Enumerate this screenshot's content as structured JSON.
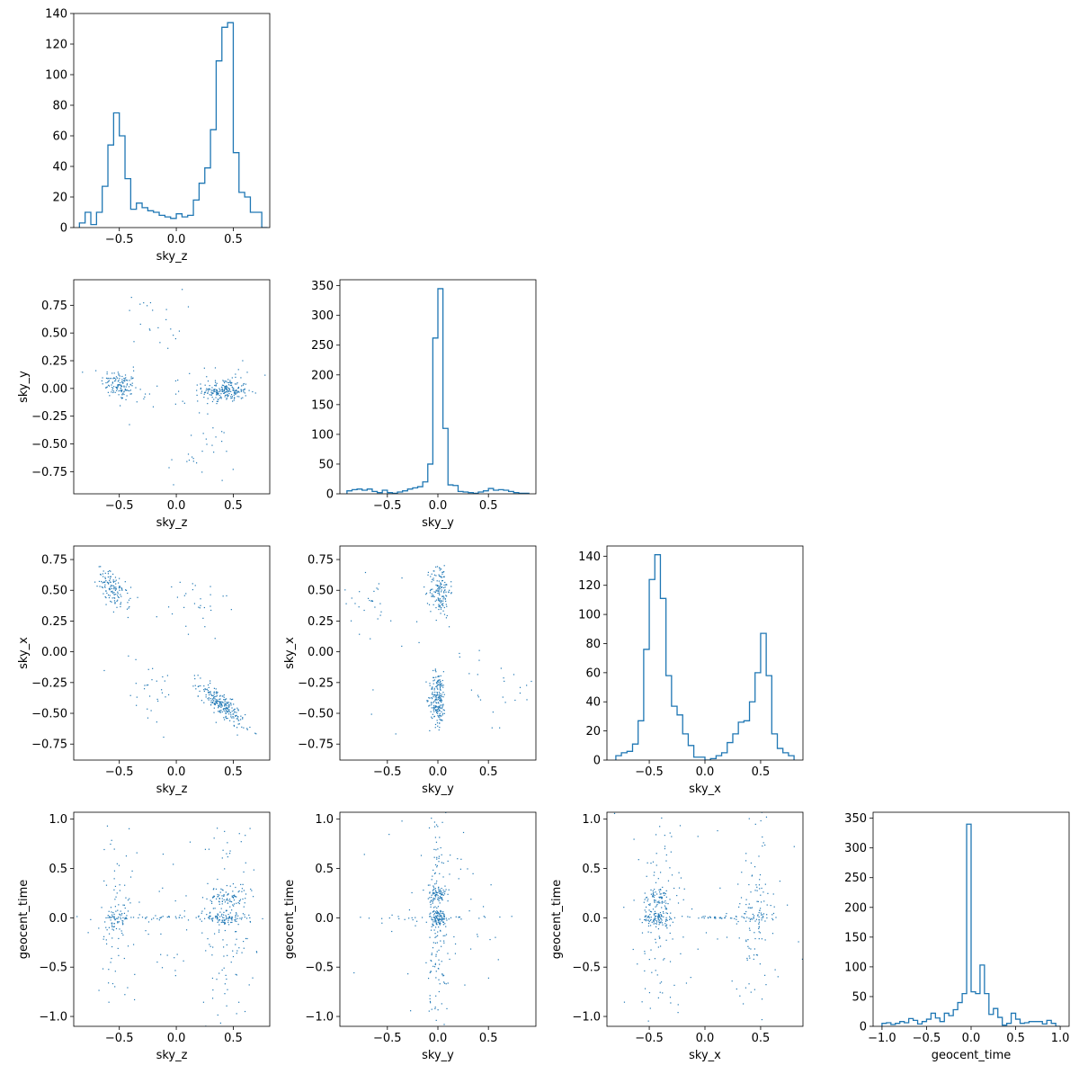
{
  "figure": {
    "variables": [
      "sky_z",
      "sky_y",
      "sky_x",
      "geocent_time"
    ],
    "color": "#1f77b4"
  },
  "chart_data": [
    {
      "type": "histogram",
      "row": 0,
      "col": 0,
      "xlabel": "sky_z",
      "ylabel": "",
      "xlim": [
        -0.9,
        0.82
      ],
      "ylim": [
        0,
        140
      ],
      "xticks": [
        -0.5,
        0.0,
        0.5
      ],
      "yticks": [
        0,
        20,
        40,
        60,
        80,
        100,
        120,
        140
      ],
      "bin_edges": [
        -0.85,
        -0.8,
        -0.75,
        -0.7,
        -0.65,
        -0.6,
        -0.55,
        -0.5,
        -0.45,
        -0.4,
        -0.35,
        -0.3,
        -0.25,
        -0.2,
        -0.15,
        -0.1,
        -0.05,
        0.0,
        0.05,
        0.1,
        0.15,
        0.2,
        0.25,
        0.3,
        0.35,
        0.4,
        0.45,
        0.5,
        0.55,
        0.6,
        0.65,
        0.7,
        0.75,
        0.8
      ],
      "counts": [
        3,
        10,
        2,
        10,
        27,
        54,
        75,
        60,
        32,
        12,
        16,
        13,
        11,
        10,
        8,
        7,
        6,
        9,
        7,
        8,
        18,
        29,
        39,
        64,
        109,
        131,
        134,
        49,
        23,
        20,
        10,
        10,
        0
      ]
    },
    {
      "type": "scatter",
      "row": 1,
      "col": 0,
      "xlabel": "sky_z",
      "ylabel": "sky_y",
      "xlim": [
        -0.9,
        0.82
      ],
      "ylim": [
        -0.95,
        0.98
      ],
      "xticks": [
        -0.5,
        0.0,
        0.5
      ],
      "yticks": [
        -0.75,
        -0.5,
        -0.25,
        0.0,
        0.25,
        0.5,
        0.75
      ],
      "clusters": [
        {
          "n": 130,
          "cx": -0.5,
          "cy": 0.03,
          "sx": 0.08,
          "sy": 0.07,
          "rho": -0.3
        },
        {
          "n": 210,
          "cx": 0.43,
          "cy": -0.02,
          "sx": 0.1,
          "sy": 0.05,
          "rho": 0.0
        },
        {
          "n": 22,
          "cx": -0.2,
          "cy": 0.62,
          "sx": 0.13,
          "sy": 0.14,
          "rho": 0.0
        },
        {
          "n": 28,
          "cx": 0.22,
          "cy": -0.6,
          "sx": 0.15,
          "sy": 0.15,
          "rho": 0.0
        },
        {
          "n": 40,
          "cx": 0.0,
          "cy": 0.0,
          "sx": 0.5,
          "sy": 0.14,
          "rho": 0.0
        }
      ]
    },
    {
      "type": "histogram",
      "row": 1,
      "col": 1,
      "xlabel": "sky_y",
      "ylabel": "",
      "xlim": [
        -0.97,
        0.97
      ],
      "ylim": [
        0,
        360
      ],
      "xticks": [
        -0.5,
        0.0,
        0.5
      ],
      "yticks": [
        0,
        50,
        100,
        150,
        200,
        250,
        300,
        350
      ],
      "bin_edges": [
        -0.9,
        -0.85,
        -0.8,
        -0.75,
        -0.7,
        -0.65,
        -0.6,
        -0.55,
        -0.5,
        -0.45,
        -0.4,
        -0.35,
        -0.3,
        -0.25,
        -0.2,
        -0.15,
        -0.1,
        -0.05,
        0.0,
        0.05,
        0.1,
        0.15,
        0.2,
        0.25,
        0.3,
        0.35,
        0.4,
        0.45,
        0.5,
        0.55,
        0.6,
        0.65,
        0.7,
        0.75,
        0.8,
        0.85,
        0.9
      ],
      "counts": [
        5,
        7,
        8,
        6,
        8,
        4,
        2,
        6,
        2,
        1,
        3,
        5,
        8,
        10,
        12,
        20,
        50,
        262,
        345,
        110,
        15,
        14,
        4,
        3,
        2,
        1,
        3,
        5,
        9,
        6,
        7,
        6,
        4,
        2,
        1,
        1
      ]
    },
    {
      "type": "scatter",
      "row": 2,
      "col": 0,
      "xlabel": "sky_z",
      "ylabel": "sky_x",
      "xlim": [
        -0.9,
        0.82
      ],
      "ylim": [
        -0.88,
        0.86
      ],
      "xticks": [
        -0.5,
        0.0,
        0.5
      ],
      "yticks": [
        -0.75,
        -0.5,
        -0.25,
        0.0,
        0.25,
        0.5,
        0.75
      ],
      "clusters": [
        {
          "n": 130,
          "cx": -0.55,
          "cy": 0.5,
          "sx": 0.07,
          "sy": 0.08,
          "rho": -0.6
        },
        {
          "n": 230,
          "cx": 0.4,
          "cy": -0.43,
          "sx": 0.1,
          "sy": 0.09,
          "rho": -0.85
        },
        {
          "n": 30,
          "cx": 0.15,
          "cy": 0.35,
          "sx": 0.15,
          "sy": 0.15,
          "rho": 0.0
        },
        {
          "n": 30,
          "cx": -0.25,
          "cy": -0.3,
          "sx": 0.15,
          "sy": 0.15,
          "rho": 0.0
        }
      ]
    },
    {
      "type": "scatter",
      "row": 2,
      "col": 1,
      "xlabel": "sky_y",
      "ylabel": "sky_x",
      "xlim": [
        -0.97,
        0.97
      ],
      "ylim": [
        -0.88,
        0.86
      ],
      "xticks": [
        -0.5,
        0.0,
        0.5
      ],
      "yticks": [
        -0.75,
        -0.5,
        -0.25,
        0.0,
        0.25,
        0.5,
        0.75
      ],
      "clusters": [
        {
          "n": 150,
          "cx": 0.02,
          "cy": 0.5,
          "sx": 0.05,
          "sy": 0.11,
          "rho": 0.0
        },
        {
          "n": 200,
          "cx": 0.0,
          "cy": -0.38,
          "sx": 0.04,
          "sy": 0.11,
          "rho": 0.0
        },
        {
          "n": 25,
          "cx": -0.65,
          "cy": 0.4,
          "sx": 0.15,
          "sy": 0.13,
          "rho": 0.0
        },
        {
          "n": 20,
          "cx": 0.65,
          "cy": -0.35,
          "sx": 0.14,
          "sy": 0.13,
          "rho": 0.0
        },
        {
          "n": 20,
          "cx": 0.0,
          "cy": 0.0,
          "sx": 0.35,
          "sy": 0.4,
          "rho": 0.0
        }
      ]
    },
    {
      "type": "histogram",
      "row": 2,
      "col": 2,
      "xlabel": "sky_x",
      "ylabel": "",
      "xlim": [
        -0.88,
        0.88
      ],
      "ylim": [
        0,
        147
      ],
      "xticks": [
        -0.5,
        0.0,
        0.5
      ],
      "yticks": [
        0,
        20,
        40,
        60,
        80,
        100,
        120,
        140
      ],
      "bin_edges": [
        -0.8,
        -0.75,
        -0.7,
        -0.65,
        -0.6,
        -0.55,
        -0.5,
        -0.45,
        -0.4,
        -0.35,
        -0.3,
        -0.25,
        -0.2,
        -0.15,
        -0.1,
        -0.05,
        0.0,
        0.05,
        0.1,
        0.15,
        0.2,
        0.25,
        0.3,
        0.35,
        0.4,
        0.45,
        0.5,
        0.55,
        0.6,
        0.65,
        0.7,
        0.75,
        0.8
      ],
      "counts": [
        3,
        5,
        6,
        11,
        27,
        76,
        124,
        141,
        111,
        58,
        37,
        31,
        18,
        10,
        2,
        2,
        0,
        1,
        3,
        5,
        12,
        18,
        26,
        27,
        40,
        60,
        87,
        58,
        18,
        8,
        5,
        3
      ]
    },
    {
      "type": "scatter",
      "row": 3,
      "col": 0,
      "xlabel": "sky_z",
      "ylabel": "geocent_time",
      "xlim": [
        -0.9,
        0.82
      ],
      "ylim": [
        -1.1,
        1.07
      ],
      "xticks": [
        -0.5,
        0.0,
        0.5
      ],
      "yticks": [
        -1.0,
        -0.5,
        0.0,
        0.5,
        1.0
      ],
      "clusters": [
        {
          "n": 55,
          "cx": -0.52,
          "cy": 0.0,
          "sx": 0.05,
          "sy": 0.05,
          "rho": 0.0
        },
        {
          "n": 90,
          "cx": 0.42,
          "cy": 0.0,
          "sx": 0.1,
          "sy": 0.03,
          "rho": 0.0
        },
        {
          "n": 70,
          "cx": 0.45,
          "cy": 0.2,
          "sx": 0.09,
          "sy": 0.06,
          "rho": 0.0
        },
        {
          "n": 35,
          "cx": -0.1,
          "cy": 0.0,
          "sx": 0.22,
          "sy": 0.01,
          "rho": 0.0
        },
        {
          "n": 80,
          "cx": -0.5,
          "cy": 0.0,
          "sx": 0.09,
          "sy": 0.5,
          "rho": 0.0
        },
        {
          "n": 120,
          "cx": 0.45,
          "cy": 0.0,
          "sx": 0.12,
          "sy": 0.5,
          "rho": 0.0
        },
        {
          "n": 40,
          "cx": 0.0,
          "cy": 0.0,
          "sx": 0.4,
          "sy": 0.6,
          "rho": 0.0
        }
      ]
    },
    {
      "type": "scatter",
      "row": 3,
      "col": 1,
      "xlabel": "sky_y",
      "ylabel": "geocent_time",
      "xlim": [
        -0.97,
        0.97
      ],
      "ylim": [
        -1.1,
        1.07
      ],
      "xticks": [
        -0.5,
        0.0,
        0.5
      ],
      "yticks": [
        -1.0,
        -0.5,
        0.0,
        0.5,
        1.0
      ],
      "clusters": [
        {
          "n": 90,
          "cx": 0.0,
          "cy": 0.0,
          "sx": 0.04,
          "sy": 0.04,
          "rho": 0.0
        },
        {
          "n": 60,
          "cx": 0.0,
          "cy": 0.22,
          "sx": 0.04,
          "sy": 0.06,
          "rho": 0.0
        },
        {
          "n": 30,
          "cx": 0.0,
          "cy": 0.0,
          "sx": 0.4,
          "sy": 0.01,
          "rho": 0.0
        },
        {
          "n": 150,
          "cx": 0.0,
          "cy": 0.0,
          "sx": 0.05,
          "sy": 0.55,
          "rho": 0.0
        },
        {
          "n": 60,
          "cx": 0.0,
          "cy": 0.0,
          "sx": 0.4,
          "sy": 0.55,
          "rho": 0.0
        }
      ]
    },
    {
      "type": "scatter",
      "row": 3,
      "col": 2,
      "xlabel": "sky_x",
      "ylabel": "geocent_time",
      "xlim": [
        -0.88,
        0.88
      ],
      "ylim": [
        -1.1,
        1.07
      ],
      "xticks": [
        -0.5,
        0.0,
        0.5
      ],
      "yticks": [
        -1.0,
        -0.5,
        0.0,
        0.5,
        1.0
      ],
      "clusters": [
        {
          "n": 90,
          "cx": -0.42,
          "cy": 0.0,
          "sx": 0.07,
          "sy": 0.04,
          "rho": 0.0
        },
        {
          "n": 60,
          "cx": -0.42,
          "cy": 0.2,
          "sx": 0.07,
          "sy": 0.06,
          "rho": 0.0
        },
        {
          "n": 50,
          "cx": 0.45,
          "cy": 0.02,
          "sx": 0.08,
          "sy": 0.05,
          "rho": 0.0
        },
        {
          "n": 35,
          "cx": 0.1,
          "cy": 0.0,
          "sx": 0.2,
          "sy": 0.01,
          "rho": 0.0
        },
        {
          "n": 110,
          "cx": -0.42,
          "cy": 0.0,
          "sx": 0.1,
          "sy": 0.5,
          "rho": 0.0
        },
        {
          "n": 90,
          "cx": 0.45,
          "cy": 0.0,
          "sx": 0.1,
          "sy": 0.5,
          "rho": 0.0
        },
        {
          "n": 30,
          "cx": 0.0,
          "cy": 0.0,
          "sx": 0.4,
          "sy": 0.6,
          "rho": 0.0
        }
      ]
    },
    {
      "type": "histogram",
      "row": 3,
      "col": 3,
      "xlabel": "geocent_time",
      "ylabel": "",
      "xlim": [
        -1.1,
        1.1
      ],
      "ylim": [
        0,
        360
      ],
      "xticks": [
        -1.0,
        -0.5,
        0.0,
        0.5,
        1.0
      ],
      "yticks": [
        0,
        50,
        100,
        150,
        200,
        250,
        300,
        350
      ],
      "bin_edges": [
        -1.0,
        -0.95,
        -0.9,
        -0.85,
        -0.8,
        -0.75,
        -0.7,
        -0.65,
        -0.6,
        -0.55,
        -0.5,
        -0.45,
        -0.4,
        -0.35,
        -0.3,
        -0.25,
        -0.2,
        -0.15,
        -0.1,
        -0.05,
        0.0,
        0.05,
        0.1,
        0.15,
        0.2,
        0.25,
        0.3,
        0.35,
        0.4,
        0.45,
        0.5,
        0.55,
        0.6,
        0.65,
        0.7,
        0.75,
        0.8,
        0.85,
        0.9,
        0.95,
        1.0
      ],
      "counts": [
        5,
        6,
        3,
        5,
        8,
        6,
        13,
        10,
        4,
        8,
        12,
        22,
        14,
        8,
        22,
        18,
        28,
        40,
        55,
        340,
        58,
        55,
        103,
        55,
        20,
        30,
        15,
        2,
        5,
        22,
        12,
        5,
        6,
        8,
        8,
        8,
        4,
        10,
        5,
        0
      ]
    }
  ]
}
